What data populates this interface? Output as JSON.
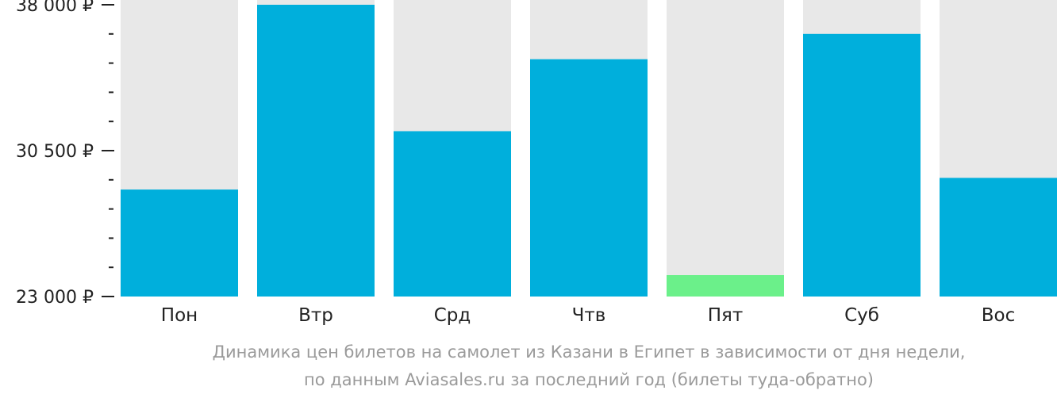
{
  "chart_data": {
    "type": "bar",
    "categories": [
      "Пон",
      "Втр",
      "Срд",
      "Чтв",
      "Пят",
      "Суб",
      "Вос"
    ],
    "values": [
      28500,
      38000,
      31500,
      35200,
      24100,
      36500,
      29100
    ],
    "ylim": [
      23000,
      38000
    ],
    "y_tick_values": [
      23000,
      30500,
      38000
    ],
    "y_tick_labels": [
      "23 000 ₽",
      "30 500 ₽",
      "38 000 ₽"
    ],
    "y_minor_ticks": 4,
    "grid": false,
    "legend": "none",
    "caption": [
      "Динамика цен билетов на самолет из Казани в Египет в зависимости от дня недели,",
      "по данным Aviasales.ru за последний год (билеты туда-обратно)"
    ]
  },
  "colors": {
    "bar": "#00afdc",
    "bar_min": "#6bf08a",
    "bar_background": "#e8e8e8",
    "axis": "#222222",
    "caption": "#9a9a9a"
  }
}
